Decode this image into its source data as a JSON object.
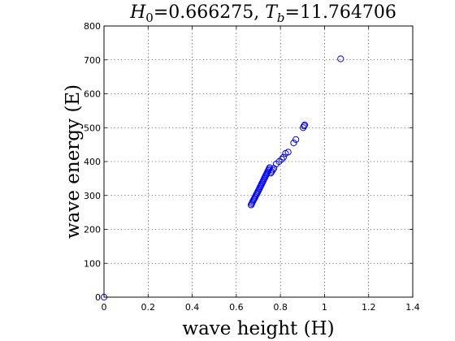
{
  "chart_data": {
    "type": "scatter",
    "title": {
      "h_symbol": "H",
      "h_subscript": "0",
      "h_value": "=0.666275, ",
      "t_symbol": "T",
      "t_subscript": "b",
      "t_value": "=11.764706"
    },
    "xlabel": "wave height (H)",
    "ylabel": "wave energy (E)",
    "xlim": [
      0,
      1.4
    ],
    "ylim": [
      0,
      800
    ],
    "x_ticks": [
      0,
      0.2,
      0.4,
      0.6,
      0.8,
      1,
      1.2,
      1.4
    ],
    "x_tick_labels": [
      "0",
      "0.2",
      "0.4",
      "0.6",
      "0.8",
      "1",
      "1.2",
      "1.4"
    ],
    "y_ticks": [
      0,
      100,
      200,
      300,
      400,
      500,
      600,
      700,
      800
    ],
    "y_tick_labels": [
      "0",
      "100",
      "200",
      "300",
      "400",
      "500",
      "600",
      "700",
      "800"
    ],
    "grid": true,
    "marker_color": "#0000ff",
    "marker_shape": "open-circle",
    "points": [
      [
        0,
        0
      ],
      [
        0.667,
        272
      ],
      [
        0.67,
        276
      ],
      [
        0.673,
        280
      ],
      [
        0.676,
        284
      ],
      [
        0.679,
        288
      ],
      [
        0.682,
        291
      ],
      [
        0.685,
        295
      ],
      [
        0.688,
        299
      ],
      [
        0.691,
        303
      ],
      [
        0.694,
        306
      ],
      [
        0.697,
        310
      ],
      [
        0.7,
        314
      ],
      [
        0.703,
        318
      ],
      [
        0.706,
        322
      ],
      [
        0.709,
        326
      ],
      [
        0.712,
        330
      ],
      [
        0.715,
        334
      ],
      [
        0.718,
        338
      ],
      [
        0.721,
        342
      ],
      [
        0.724,
        346
      ],
      [
        0.727,
        350
      ],
      [
        0.73,
        354
      ],
      [
        0.733,
        358
      ],
      [
        0.736,
        362
      ],
      [
        0.739,
        366
      ],
      [
        0.742,
        370
      ],
      [
        0.745,
        374
      ],
      [
        0.748,
        378
      ],
      [
        0.751,
        382
      ],
      [
        0.756,
        366
      ],
      [
        0.76,
        370
      ],
      [
        0.765,
        375
      ],
      [
        0.77,
        380
      ],
      [
        0.781,
        393
      ],
      [
        0.794,
        400
      ],
      [
        0.806,
        407
      ],
      [
        0.814,
        413
      ],
      [
        0.823,
        424
      ],
      [
        0.835,
        428
      ],
      [
        0.86,
        455
      ],
      [
        0.87,
        465
      ],
      [
        0.903,
        500
      ],
      [
        0.907,
        505
      ],
      [
        0.91,
        508
      ],
      [
        1.073,
        703
      ]
    ]
  }
}
